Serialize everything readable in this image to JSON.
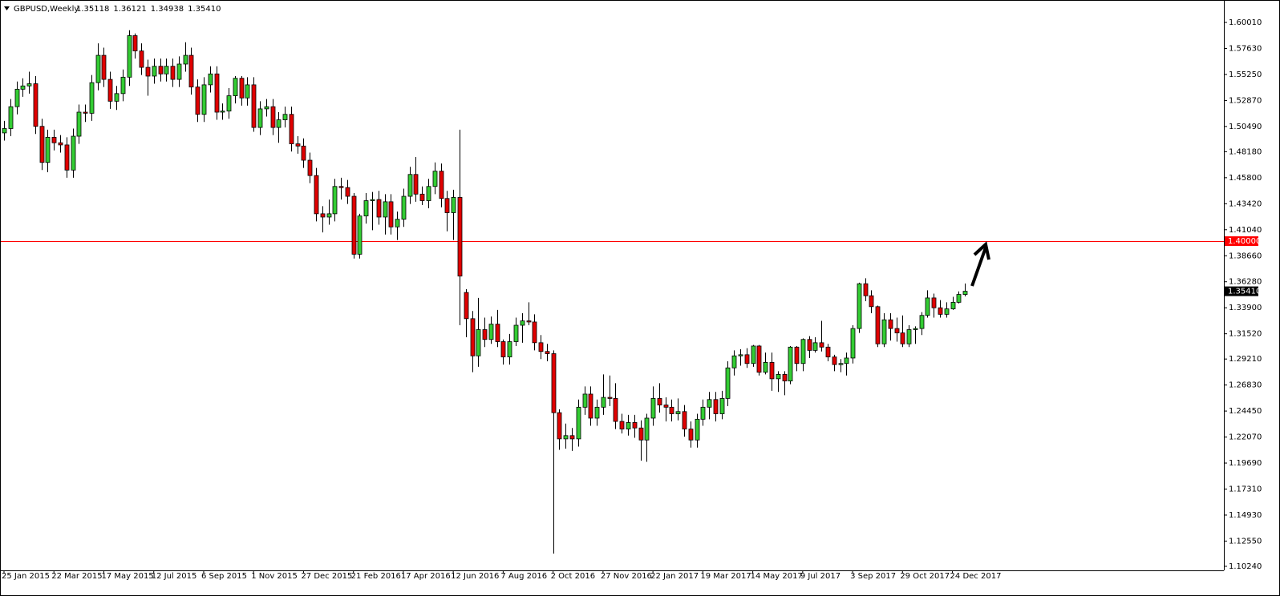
{
  "chart_data": {
    "type": "candlestick",
    "title": "GBPUSD,Weekly",
    "last_labels": [
      "1.35118",
      "1.36121",
      "1.34938",
      "1.35410"
    ],
    "up_color": "#33cc33",
    "down_color": "#e00000",
    "hline": {
      "value": 1.4,
      "label": "1.40000",
      "color": "#ff0000"
    },
    "categories": [
      "25 Jan 2015",
      null,
      null,
      null,
      null,
      null,
      null,
      null,
      "22 Mar 2015",
      null,
      null,
      null,
      null,
      null,
      null,
      null,
      "17 May 2015",
      null,
      null,
      null,
      null,
      null,
      null,
      null,
      "12 Jul 2015",
      null,
      null,
      null,
      null,
      null,
      null,
      null,
      "6 Sep 2015",
      null,
      null,
      null,
      null,
      null,
      null,
      null,
      "1 Nov 2015",
      null,
      null,
      null,
      null,
      null,
      null,
      null,
      "27 Dec 2015",
      null,
      null,
      null,
      null,
      null,
      null,
      null,
      "21 Feb 2016",
      null,
      null,
      null,
      null,
      null,
      null,
      null,
      "17 Apr 2016",
      null,
      null,
      null,
      null,
      null,
      null,
      null,
      "12 Jun 2016",
      null,
      null,
      null,
      null,
      null,
      null,
      null,
      "7 Aug 2016",
      null,
      null,
      null,
      null,
      null,
      null,
      null,
      "2 Oct 2016",
      null,
      null,
      null,
      null,
      null,
      null,
      null,
      "27 Nov 2016",
      null,
      null,
      null,
      null,
      null,
      null,
      null,
      "22 Jan 2017",
      null,
      null,
      null,
      null,
      null,
      null,
      null,
      "19 Mar 2017",
      null,
      null,
      null,
      null,
      null,
      null,
      null,
      "14 May 2017",
      null,
      null,
      null,
      null,
      null,
      null,
      null,
      "9 Jul 2017",
      null,
      null,
      null,
      null,
      null,
      null,
      null,
      "3 Sep 2017",
      null,
      null,
      null,
      null,
      null,
      null,
      null,
      "29 Oct 2017",
      null,
      null,
      null,
      null,
      null,
      null,
      null,
      "24 Dec 2017",
      null,
      null
    ],
    "open": [
      1.499,
      1.503,
      1.523,
      1.539,
      1.542,
      1.544,
      1.505,
      1.472,
      1.495,
      1.49,
      1.488,
      1.465,
      1.496,
      1.518,
      1.517,
      1.545,
      1.57,
      1.548,
      1.528,
      1.535,
      1.55,
      1.588,
      1.574,
      1.559,
      1.551,
      1.56,
      1.553,
      1.56,
      1.548,
      1.562,
      1.57,
      1.541,
      1.516,
      1.543,
      1.553,
      1.518,
      1.519,
      1.533,
      1.549,
      1.531,
      1.543,
      1.504,
      1.521,
      1.523,
      1.504,
      1.511,
      1.516,
      1.489,
      1.487,
      1.474,
      1.46,
      1.425,
      1.422,
      1.425,
      1.45,
      1.449,
      1.441,
      1.388,
      1.423,
      1.437,
      1.438,
      1.422,
      1.436,
      1.413,
      1.42,
      1.441,
      1.461,
      1.443,
      1.437,
      1.45,
      1.464,
      1.439,
      1.426,
      1.44,
      1.353,
      1.329,
      1.295,
      1.319,
      1.31,
      1.324,
      1.308,
      1.294,
      1.308,
      1.323,
      1.327,
      1.326,
      1.307,
      1.299,
      1.297,
      1.243,
      1.219,
      1.222,
      1.219,
      1.248,
      1.26,
      1.238,
      1.248,
      1.257,
      1.256,
      1.235,
      1.228,
      1.234,
      1.229,
      1.218,
      1.238,
      1.256,
      1.25,
      1.248,
      1.242,
      1.244,
      1.228,
      1.218,
      1.237,
      1.248,
      1.255,
      1.242,
      1.256,
      1.284,
      1.295,
      1.296,
      1.288,
      1.304,
      1.28,
      1.289,
      1.274,
      1.278,
      1.272,
      1.303,
      1.288,
      1.31,
      1.3,
      1.307,
      1.303,
      1.294,
      1.287,
      1.288,
      1.293,
      1.32,
      1.361,
      1.35,
      1.34,
      1.306,
      1.328,
      1.32,
      1.316,
      1.306,
      1.319,
      1.32,
      1.332,
      1.348,
      1.339,
      1.333,
      1.338,
      1.344,
      1.35118
    ],
    "high": [
      1.51,
      1.53,
      1.546,
      1.549,
      1.555,
      1.551,
      1.512,
      1.502,
      1.502,
      1.497,
      1.495,
      1.503,
      1.525,
      1.525,
      1.552,
      1.581,
      1.577,
      1.555,
      1.542,
      1.557,
      1.593,
      1.59,
      1.581,
      1.566,
      1.567,
      1.567,
      1.567,
      1.567,
      1.569,
      1.582,
      1.577,
      1.548,
      1.55,
      1.56,
      1.56,
      1.526,
      1.54,
      1.551,
      1.551,
      1.55,
      1.55,
      1.528,
      1.53,
      1.53,
      1.518,
      1.523,
      1.523,
      1.496,
      1.494,
      1.481,
      1.467,
      1.432,
      1.438,
      1.457,
      1.458,
      1.456,
      1.444,
      1.425,
      1.444,
      1.445,
      1.446,
      1.443,
      1.443,
      1.427,
      1.448,
      1.468,
      1.477,
      1.45,
      1.457,
      1.472,
      1.471,
      1.446,
      1.447,
      1.502,
      1.356,
      1.336,
      1.348,
      1.33,
      1.331,
      1.337,
      1.31,
      1.315,
      1.33,
      1.334,
      1.344,
      1.333,
      1.314,
      1.306,
      1.3,
      1.246,
      1.233,
      1.229,
      1.255,
      1.267,
      1.267,
      1.255,
      1.278,
      1.277,
      1.27,
      1.242,
      1.241,
      1.241,
      1.236,
      1.242,
      1.267,
      1.27,
      1.257,
      1.255,
      1.256,
      1.25,
      1.235,
      1.242,
      1.255,
      1.262,
      1.262,
      1.263,
      1.29,
      1.3,
      1.301,
      1.302,
      1.305,
      1.305,
      1.298,
      1.298,
      1.281,
      1.281,
      1.304,
      1.304,
      1.311,
      1.313,
      1.312,
      1.327,
      1.306,
      1.296,
      1.292,
      1.298,
      1.323,
      1.362,
      1.366,
      1.355,
      1.341,
      1.334,
      1.334,
      1.33,
      1.332,
      1.323,
      1.322,
      1.335,
      1.355,
      1.352,
      1.346,
      1.344,
      1.349,
      1.354,
      1.36121
    ],
    "low": [
      1.492,
      1.496,
      1.516,
      1.532,
      1.535,
      1.498,
      1.465,
      1.463,
      1.483,
      1.481,
      1.458,
      1.458,
      1.489,
      1.509,
      1.51,
      1.538,
      1.541,
      1.521,
      1.52,
      1.528,
      1.542,
      1.567,
      1.552,
      1.533,
      1.544,
      1.546,
      1.546,
      1.541,
      1.541,
      1.555,
      1.534,
      1.509,
      1.509,
      1.536,
      1.511,
      1.511,
      1.512,
      1.526,
      1.524,
      1.524,
      1.5,
      1.497,
      1.514,
      1.497,
      1.49,
      1.504,
      1.482,
      1.48,
      1.467,
      1.453,
      1.418,
      1.408,
      1.415,
      1.418,
      1.438,
      1.434,
      1.384,
      1.384,
      1.416,
      1.41,
      1.415,
      1.406,
      1.406,
      1.401,
      1.413,
      1.434,
      1.436,
      1.433,
      1.43,
      1.443,
      1.431,
      1.409,
      1.401,
      1.323,
      1.312,
      1.28,
      1.285,
      1.303,
      1.306,
      1.303,
      1.287,
      1.287,
      1.304,
      1.307,
      1.323,
      1.3,
      1.292,
      1.29,
      1.114,
      1.209,
      1.21,
      1.208,
      1.212,
      1.241,
      1.231,
      1.231,
      1.241,
      1.249,
      1.228,
      1.224,
      1.222,
      1.22,
      1.199,
      1.198,
      1.231,
      1.243,
      1.235,
      1.235,
      1.236,
      1.221,
      1.211,
      1.211,
      1.231,
      1.237,
      1.235,
      1.237,
      1.249,
      1.277,
      1.286,
      1.284,
      1.285,
      1.277,
      1.278,
      1.263,
      1.262,
      1.259,
      1.269,
      1.281,
      1.281,
      1.293,
      1.298,
      1.299,
      1.29,
      1.281,
      1.28,
      1.277,
      1.288,
      1.316,
      1.345,
      1.334,
      1.303,
      1.303,
      1.309,
      1.308,
      1.303,
      1.303,
      1.306,
      1.314,
      1.33,
      1.33,
      1.33,
      1.33,
      1.337,
      1.343,
      1.34938
    ],
    "close": [
      1.503,
      1.523,
      1.539,
      1.542,
      1.544,
      1.505,
      1.472,
      1.495,
      1.49,
      1.488,
      1.465,
      1.496,
      1.518,
      1.517,
      1.545,
      1.57,
      1.548,
      1.528,
      1.535,
      1.55,
      1.588,
      1.574,
      1.559,
      1.551,
      1.56,
      1.553,
      1.56,
      1.548,
      1.562,
      1.57,
      1.541,
      1.516,
      1.543,
      1.553,
      1.518,
      1.519,
      1.533,
      1.549,
      1.531,
      1.543,
      1.504,
      1.521,
      1.523,
      1.504,
      1.511,
      1.516,
      1.489,
      1.487,
      1.474,
      1.46,
      1.425,
      1.422,
      1.425,
      1.45,
      1.449,
      1.441,
      1.388,
      1.423,
      1.437,
      1.438,
      1.422,
      1.436,
      1.413,
      1.42,
      1.441,
      1.461,
      1.443,
      1.437,
      1.45,
      1.464,
      1.439,
      1.426,
      1.44,
      1.368,
      1.329,
      1.295,
      1.319,
      1.31,
      1.324,
      1.308,
      1.294,
      1.308,
      1.323,
      1.327,
      1.326,
      1.307,
      1.299,
      1.297,
      1.243,
      1.219,
      1.222,
      1.219,
      1.248,
      1.26,
      1.238,
      1.248,
      1.257,
      1.256,
      1.235,
      1.228,
      1.234,
      1.229,
      1.218,
      1.238,
      1.256,
      1.25,
      1.248,
      1.242,
      1.244,
      1.228,
      1.218,
      1.237,
      1.248,
      1.255,
      1.242,
      1.256,
      1.284,
      1.295,
      1.296,
      1.288,
      1.304,
      1.28,
      1.289,
      1.274,
      1.278,
      1.272,
      1.303,
      1.288,
      1.31,
      1.3,
      1.307,
      1.303,
      1.294,
      1.287,
      1.288,
      1.293,
      1.32,
      1.361,
      1.35,
      1.34,
      1.306,
      1.328,
      1.32,
      1.316,
      1.306,
      1.319,
      1.32,
      1.332,
      1.348,
      1.339,
      1.333,
      1.338,
      1.344,
      1.3512,
      1.3541
    ],
    "ylim": [
      1.0987,
      1.6177
    ],
    "yticks": [
      {
        "value": 1.6001,
        "label": "1.60010"
      },
      {
        "value": 1.5763,
        "label": "1.57630"
      },
      {
        "value": 1.5525,
        "label": "1.55250"
      },
      {
        "value": 1.5287,
        "label": "1.52870"
      },
      {
        "value": 1.5049,
        "label": "1.50490"
      },
      {
        "value": 1.4818,
        "label": "1.48180"
      },
      {
        "value": 1.458,
        "label": "1.45800"
      },
      {
        "value": 1.4342,
        "label": "1.43420"
      },
      {
        "value": 1.4104,
        "label": "1.41040"
      },
      {
        "value": 1.3866,
        "label": "1.38660"
      },
      {
        "value": 1.3628,
        "label": "1.36280"
      },
      {
        "value": 1.339,
        "label": "1.33900"
      },
      {
        "value": 1.3152,
        "label": "1.31520"
      },
      {
        "value": 1.2921,
        "label": "1.29210"
      },
      {
        "value": 1.2683,
        "label": "1.26830"
      },
      {
        "value": 1.2445,
        "label": "1.24450"
      },
      {
        "value": 1.2207,
        "label": "1.22070"
      },
      {
        "value": 1.1969,
        "label": "1.19690"
      },
      {
        "value": 1.1731,
        "label": "1.17310"
      },
      {
        "value": 1.1493,
        "label": "1.14930"
      },
      {
        "value": 1.1255,
        "label": "1.12550"
      },
      {
        "value": 1.1024,
        "label": "1.10240"
      }
    ],
    "grid": false
  }
}
